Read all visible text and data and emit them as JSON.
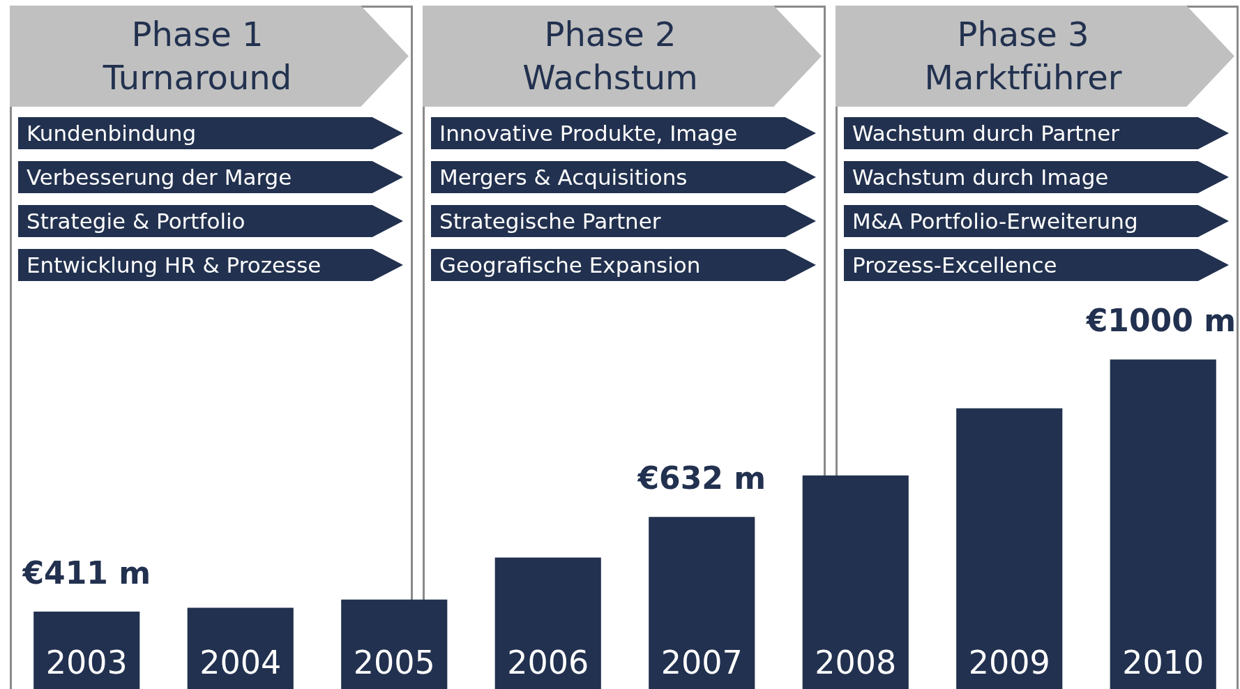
{
  "chart_data": {
    "type": "bar",
    "categories": [
      "2003",
      "2004",
      "2005",
      "2006",
      "2007",
      "2008",
      "2009",
      "2010"
    ],
    "values": [
      411,
      420,
      439,
      537,
      632,
      729,
      886,
      1000
    ],
    "value_labels": [
      "€411 m",
      null,
      null,
      null,
      "€632 m",
      null,
      null,
      "€1000 m"
    ],
    "color": "#22314f",
    "ylim": [
      230,
      1840
    ],
    "legend": false,
    "annotations": [
      "Phase 1",
      "Turnaround",
      "Kundenbindung",
      "Verbesserung der Marge",
      "Strategie & Portfolio",
      "Entwicklung HR & Prozesse",
      "Phase 2",
      "Wachstum",
      "Innovative Produkte, Image",
      "Mergers & Acquisitions",
      "Strategische Partner",
      "Geografische Expansion",
      "Phase 3",
      "Marktführer",
      "Wachstum durch Partner",
      "Wachstum durch Image",
      "M&A Portfolio-Erweiterung",
      "Prozess-Excellence"
    ]
  }
}
